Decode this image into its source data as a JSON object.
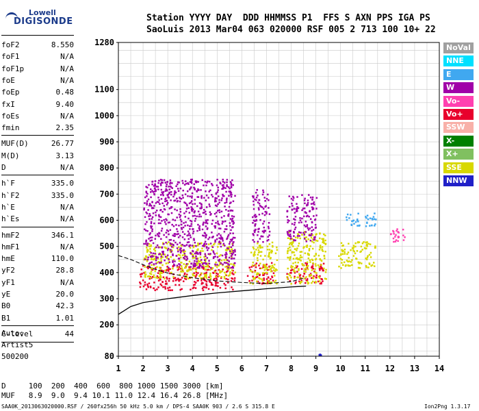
{
  "logo": {
    "line1": "Lowell",
    "line2": "DIGISONDE"
  },
  "header": {
    "row1": "Station YYYY DAY  DDD HHMMSS P1  FFS S AXN PPS IGA PS",
    "row2": "SaoLuis 2013 Mar04 063 020000 RSF 005 2 713 100 10+ 22"
  },
  "params_group1": [
    {
      "k": "foF2",
      "v": "8.550"
    },
    {
      "k": "foF1",
      "v": "N/A"
    },
    {
      "k": "foF1p",
      "v": "N/A"
    },
    {
      "k": "foE",
      "v": "N/A"
    },
    {
      "k": "foEp",
      "v": "0.48"
    },
    {
      "k": "fxI",
      "v": "9.40"
    },
    {
      "k": "foEs",
      "v": "N/A"
    },
    {
      "k": "fmin",
      "v": "2.35"
    }
  ],
  "params_group2": [
    {
      "k": "MUF(D)",
      "v": "26.77"
    },
    {
      "k": "M(D)",
      "v": "3.13"
    },
    {
      "k": "D",
      "v": "N/A"
    }
  ],
  "params_group3": [
    {
      "k": "h`F",
      "v": "335.0"
    },
    {
      "k": "h`F2",
      "v": "335.0"
    },
    {
      "k": "h`E",
      "v": "N/A"
    },
    {
      "k": "h`Es",
      "v": "N/A"
    }
  ],
  "params_group4": [
    {
      "k": "hmF2",
      "v": "346.1"
    },
    {
      "k": "hmF1",
      "v": "N/A"
    },
    {
      "k": "hmE",
      "v": "110.0"
    },
    {
      "k": "yF2",
      "v": "28.8"
    },
    {
      "k": "yF1",
      "v": "N/A"
    },
    {
      "k": "yE",
      "v": "20.0"
    },
    {
      "k": "B0",
      "v": "42.3"
    },
    {
      "k": "B1",
      "v": "1.01"
    }
  ],
  "params_group5": [
    {
      "k": "C-level",
      "v": "44"
    }
  ],
  "auto": {
    "label": "Auto:",
    "artist": "Artist5",
    "code": "500200"
  },
  "muf_table": {
    "d_row": "D     100  200  400  600  800 1000 1500 3000 [km]",
    "muf_row": "MUF   8.9  9.0  9.4 10.1 11.0 12.4 16.4 26.8 [MHz]"
  },
  "footer": {
    "left": "SAA0K_2013063020000.RSF / 260fx256h 50 kHz 5.0 km / DPS-4 SAA0K 903 / 2.6 S 315.8 E",
    "right": "Ion2Png 1.3.17"
  },
  "legend": [
    {
      "label": "NoVal",
      "color": "#a0a0a0"
    },
    {
      "label": "NNE",
      "color": "#00e0ff"
    },
    {
      "label": "E",
      "color": "#40a8f0"
    },
    {
      "label": "W",
      "color": "#a000a8"
    },
    {
      "label": "Vo-",
      "color": "#ff40b0"
    },
    {
      "label": "Vo+",
      "color": "#e8002c"
    },
    {
      "label": "SSW",
      "color": "#f8b0a8"
    },
    {
      "label": "X-",
      "color": "#008000"
    },
    {
      "label": "X+",
      "color": "#80c060"
    },
    {
      "label": "SSE",
      "color": "#d8d800"
    },
    {
      "label": "NNW",
      "color": "#2020c8"
    }
  ],
  "chart_data": {
    "type": "scatter",
    "xlabel": "",
    "ylabel": "",
    "xlim": [
      1,
      14
    ],
    "ylim": [
      80,
      1280
    ],
    "x_ticks": [
      1,
      2,
      3,
      4,
      5,
      6,
      7,
      8,
      9,
      10,
      11,
      12,
      13,
      14
    ],
    "y_ticks": [
      80,
      200,
      300,
      400,
      500,
      600,
      700,
      800,
      900,
      1000,
      1100,
      1280
    ],
    "grid": true,
    "traces": [
      {
        "series": "Vo+",
        "x_range": [
          1.8,
          5.7
        ],
        "y_range": [
          335,
          430
        ]
      },
      {
        "series": "Vo+",
        "x_range": [
          6.2,
          7.3
        ],
        "y_range": [
          360,
          440
        ]
      },
      {
        "series": "Vo+",
        "x_range": [
          7.8,
          9.3
        ],
        "y_range": [
          360,
          440
        ]
      },
      {
        "series": "SSE",
        "x_range": [
          2.0,
          5.7
        ],
        "y_range": [
          380,
          520
        ]
      },
      {
        "series": "SSE",
        "x_range": [
          6.3,
          7.4
        ],
        "y_range": [
          360,
          520
        ]
      },
      {
        "series": "SSE",
        "x_range": [
          7.8,
          9.4
        ],
        "y_range": [
          360,
          560
        ]
      },
      {
        "series": "SSE",
        "x_range": [
          9.9,
          11.4
        ],
        "y_range": [
          420,
          520
        ]
      },
      {
        "series": "W",
        "x_range": [
          2.0,
          5.7
        ],
        "y_range": [
          420,
          760
        ]
      },
      {
        "series": "W",
        "x_range": [
          6.4,
          7.1
        ],
        "y_range": [
          520,
          720
        ]
      },
      {
        "series": "W",
        "x_range": [
          7.8,
          9.0
        ],
        "y_range": [
          520,
          700
        ]
      },
      {
        "series": "E",
        "x_range": [
          10.2,
          11.4
        ],
        "y_range": [
          580,
          630
        ]
      },
      {
        "series": "Vo-",
        "x_range": [
          12.0,
          12.6
        ],
        "y_range": [
          520,
          580
        ]
      },
      {
        "series": "NNW",
        "x_range": [
          9.1,
          9.2
        ],
        "y_range": [
          86,
          90
        ]
      }
    ],
    "profile_curve": {
      "x": [
        1.0,
        1.5,
        2.0,
        3.0,
        4.0,
        5.0,
        6.0,
        7.0,
        8.0,
        8.6
      ],
      "y": [
        240,
        270,
        285,
        300,
        312,
        322,
        330,
        338,
        345,
        348
      ]
    },
    "virtual_height_trace": {
      "x": [
        1.0,
        1.5,
        2.0,
        2.5,
        3.0,
        4.0,
        5.0,
        6.0,
        7.0,
        8.0,
        8.55
      ],
      "y": [
        465,
        450,
        430,
        412,
        398,
        380,
        368,
        362,
        358,
        365,
        380
      ]
    }
  }
}
